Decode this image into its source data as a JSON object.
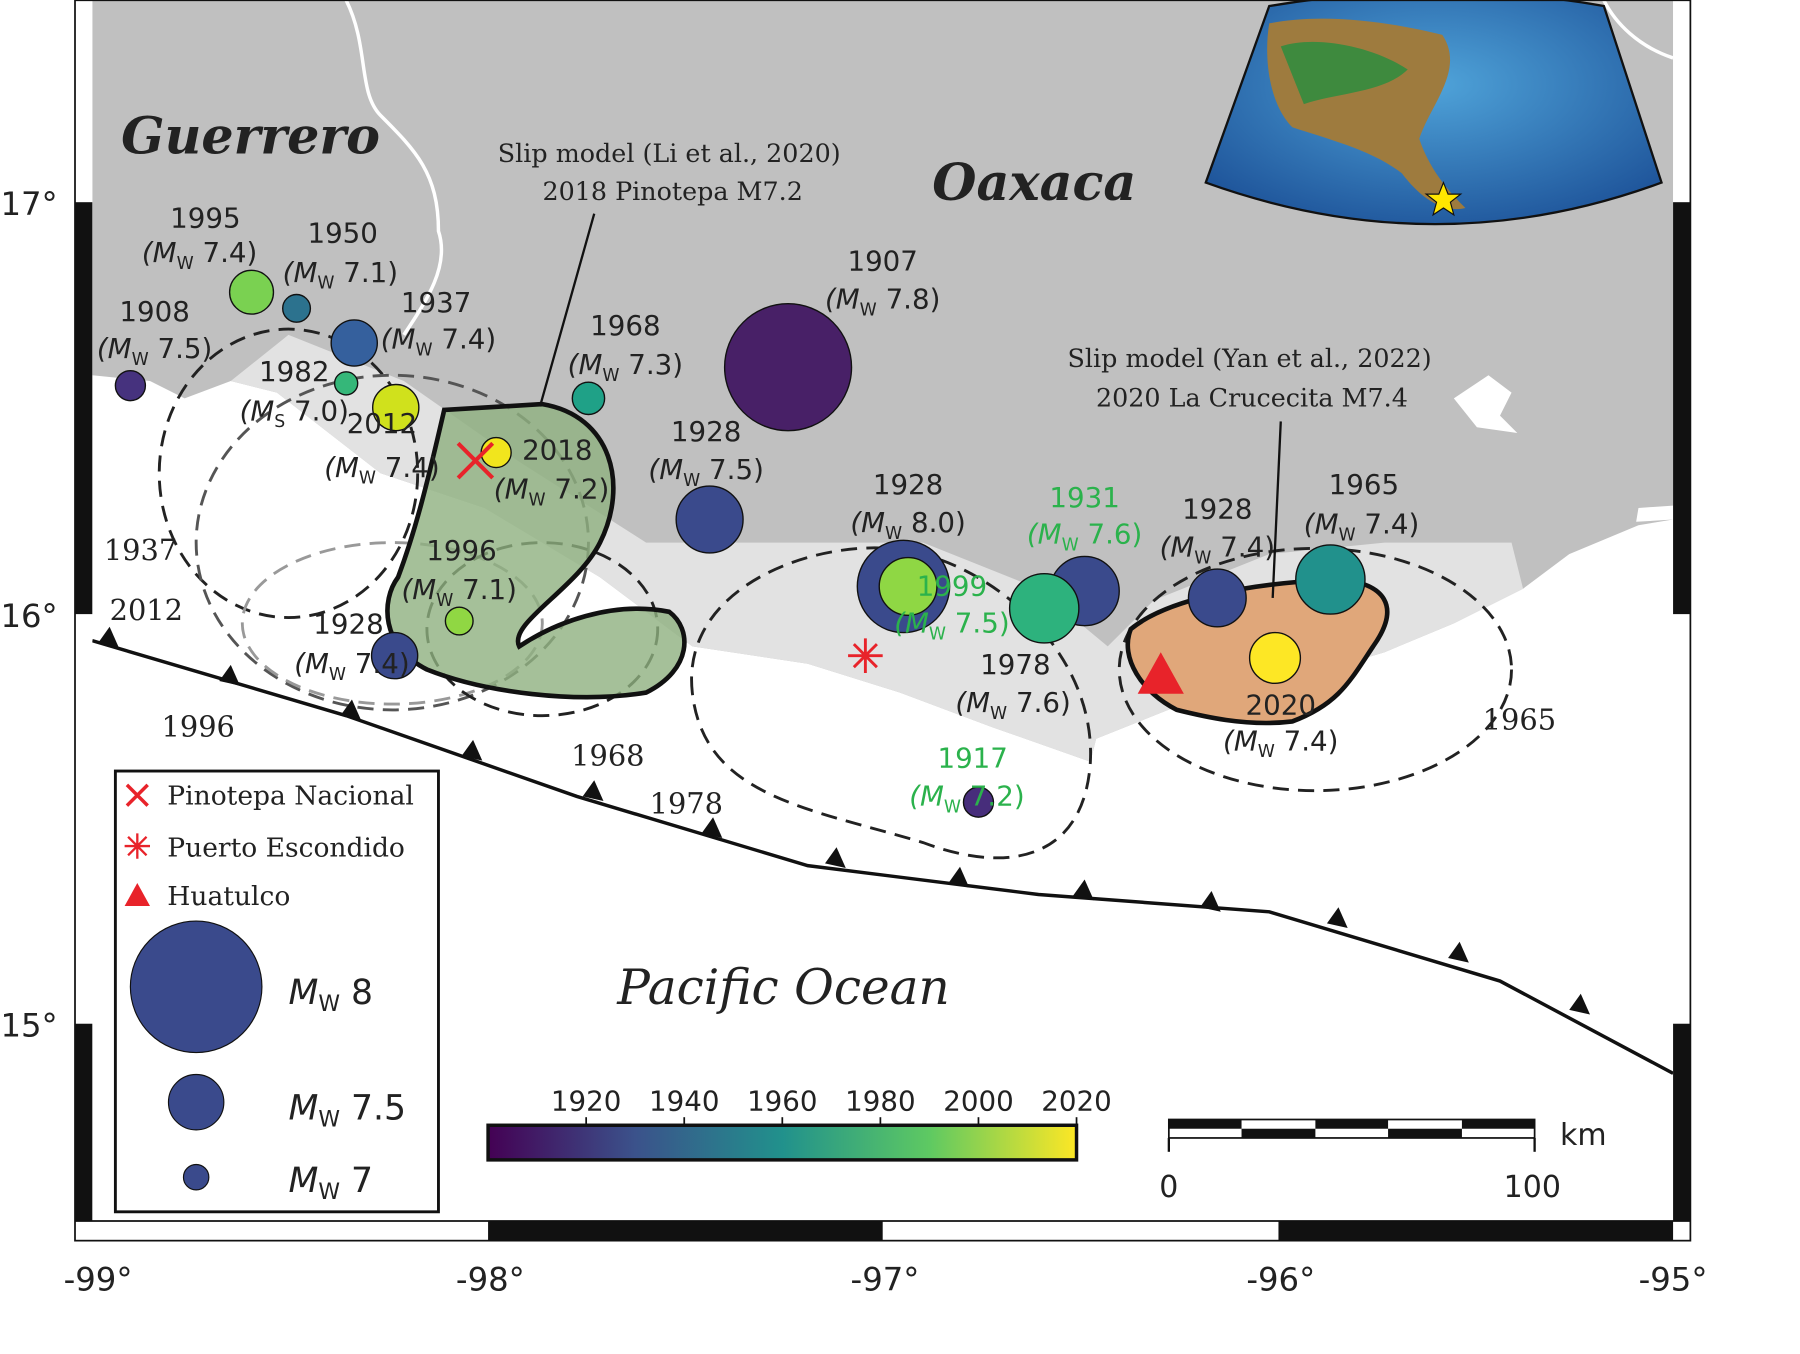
{
  "regions": [
    "Guerrero",
    "Oaxaca",
    "Pacific Ocean"
  ],
  "annotations": [
    {
      "lines": [
        "Slip model (Li et al., 2020)",
        "2018 Pinotepa M7.2"
      ]
    },
    {
      "lines": [
        "Slip model (Yan et al., 2022)",
        "2020 La Crucecita M7.4"
      ]
    }
  ],
  "rupture_labels": [
    "1937",
    "2012",
    "1996",
    "1968",
    "1978",
    "1965"
  ],
  "events": [
    {
      "year": "1908",
      "pre": "(M",
      "sub": "W",
      "post": " 7.5)",
      "color": "#46327e",
      "label_color": "#222"
    },
    {
      "year": "1995",
      "pre": "(M",
      "sub": "W",
      "post": " 7.4)",
      "color": "#7ad151",
      "label_color": "#222"
    },
    {
      "year": "1950",
      "pre": "(M",
      "sub": "W",
      "post": " 7.1)",
      "color": "#2c728e",
      "label_color": "#222"
    },
    {
      "year": "1937",
      "pre": "(M",
      "sub": "W",
      "post": " 7.4)",
      "color": "#35609d",
      "label_color": "#222"
    },
    {
      "year": "1982",
      "pre": "(M",
      "sub": "S",
      "post": " 7.0)",
      "color": "#35b779",
      "label_color": "#222"
    },
    {
      "year": "2012",
      "pre": "(M",
      "sub": "W",
      "post": " 7.4)",
      "color": "#d0e11c",
      "label_color": "#222"
    },
    {
      "year": "2018",
      "pre": "(M",
      "sub": "W",
      "post": " 7.2)",
      "color": "#f1e51d",
      "label_color": "#222"
    },
    {
      "year": "1968",
      "pre": "(M",
      "sub": "W",
      "post": " 7.3)",
      "color": "#1fa187",
      "label_color": "#222"
    },
    {
      "year": "1907",
      "pre": "(M",
      "sub": "W",
      "post": " 7.8)",
      "color": "#482067",
      "label_color": "#222"
    },
    {
      "year": "1928",
      "pre": "(M",
      "sub": "W",
      "post": " 7.5)",
      "color": "#3a4a8c",
      "label_color": "#222"
    },
    {
      "year": "1928",
      "pre": "(M",
      "sub": "W",
      "post": " 8.0)",
      "color": "#3a4a8c",
      "label_color": "#222"
    },
    {
      "year": "1999",
      "pre": "(M",
      "sub": "W",
      "post": " 7.5)",
      "color": "#8fd744",
      "label_color": "#2bb24c"
    },
    {
      "year": "1931",
      "pre": "(M",
      "sub": "W",
      "post": " 7.6)",
      "color": "#3a4a8c",
      "label_color": "#2bb24c"
    },
    {
      "year": "1978",
      "pre": "(M",
      "sub": "W",
      "post": " 7.6)",
      "color": "#2db27d",
      "label_color": "#222"
    },
    {
      "year": "1917",
      "pre": "(M",
      "sub": "W",
      "post": " 7.2)",
      "color": "#472d7b",
      "label_color": "#2bb24c"
    },
    {
      "year": "1928",
      "pre": "(M",
      "sub": "W",
      "post": " 7.4)",
      "color": "#3a4a8c",
      "label_color": "#222"
    },
    {
      "year": "1965",
      "pre": "(M",
      "sub": "W",
      "post": " 7.4)",
      "color": "#21918c",
      "label_color": "#222"
    },
    {
      "year": "2020",
      "pre": "(M",
      "sub": "W",
      "post": " 7.4)",
      "color": "#fde725",
      "label_color": "#222"
    },
    {
      "year": "1928",
      "pre": "(M",
      "sub": "W",
      "post": " 7.4)",
      "color": "#3a4a8c",
      "label_color": "#222"
    },
    {
      "year": "1996",
      "pre": "(M",
      "sub": "W",
      "post": " 7.1)",
      "color": "#90d743",
      "label_color": "#222"
    }
  ],
  "legend": {
    "symbols": [
      "Pinotepa Nacional",
      "Puerto Escondido",
      "Huatulco"
    ],
    "sizes": [
      {
        "m": "M",
        "sub": "W",
        "post": " 8"
      },
      {
        "m": "M",
        "sub": "W",
        "post": " 7.5"
      },
      {
        "m": "M",
        "sub": "W",
        "post": " 7"
      }
    ]
  },
  "colorbar": {
    "range": [
      1900,
      2020
    ],
    "ticks": [
      1920,
      1940,
      1960,
      1980,
      2000,
      2020
    ]
  },
  "scale_bar": {
    "labels": [
      "0",
      "100"
    ],
    "unit": "km"
  },
  "axes": {
    "x_labels": [
      "-99°",
      "-98°",
      "-97°",
      "-96°",
      "-95°"
    ],
    "y_labels": [
      "17°",
      "16°",
      "15°"
    ]
  }
}
